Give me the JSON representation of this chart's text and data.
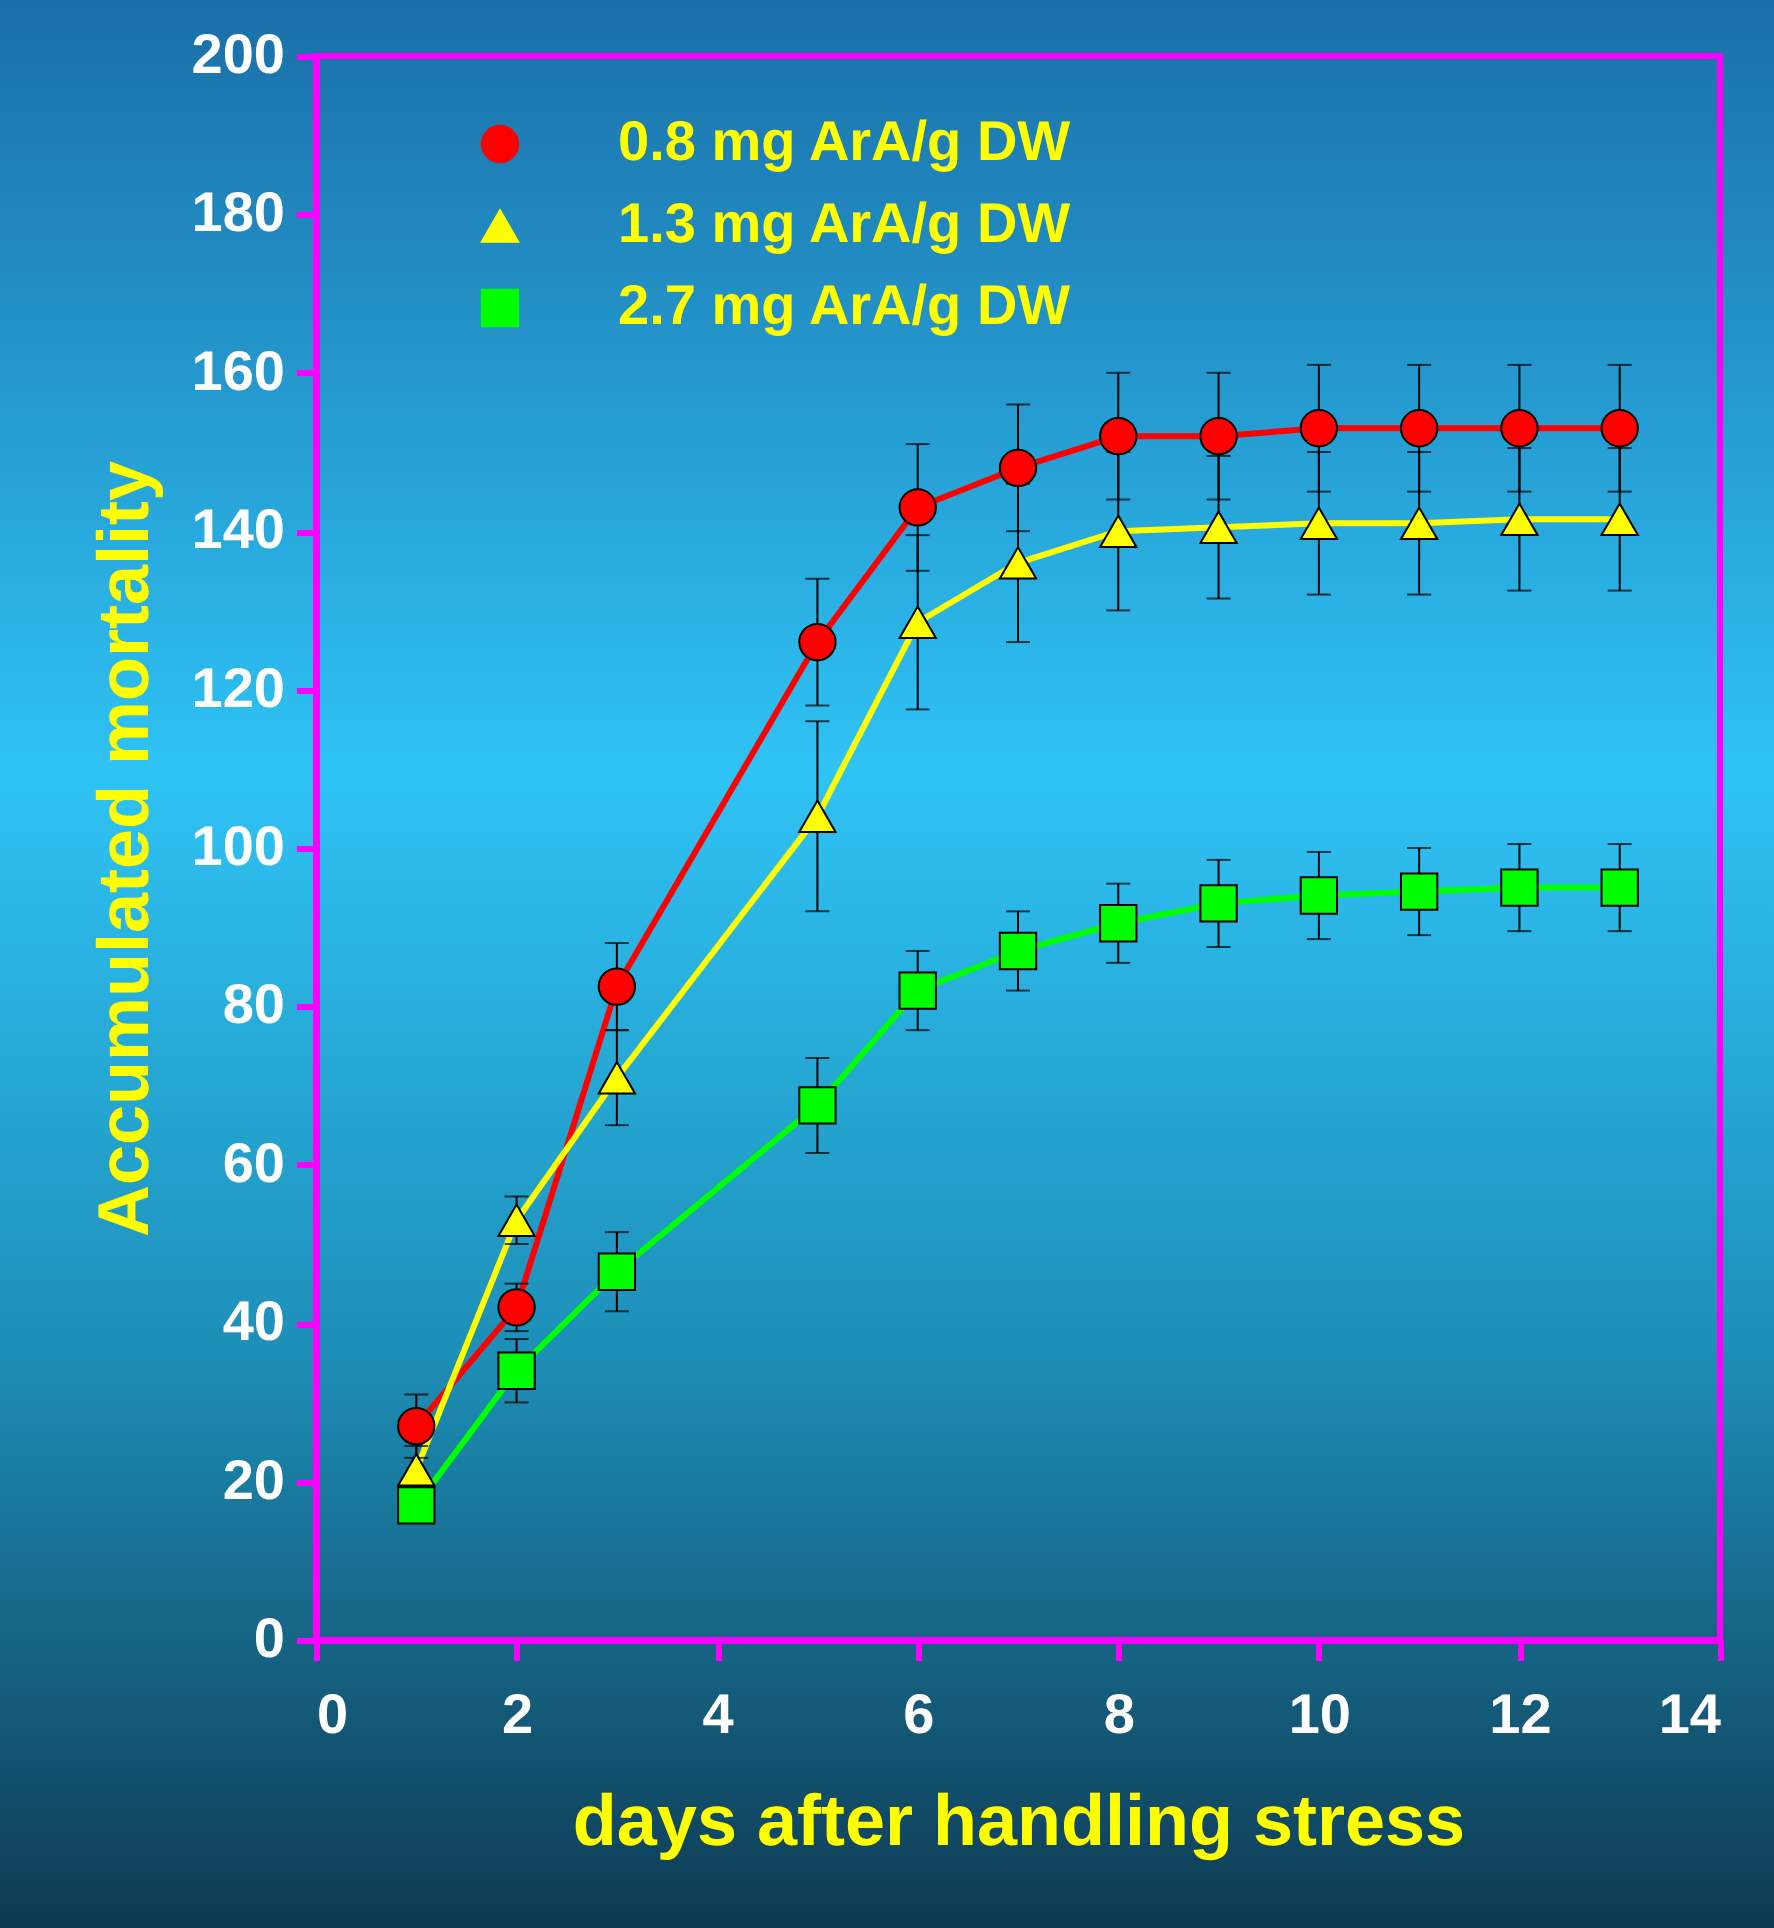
{
  "chart_data": {
    "type": "line",
    "xlabel": "days after handling stress",
    "ylabel": "Accumulated mortality",
    "x": [
      1,
      2,
      3,
      5,
      6,
      7,
      8,
      9,
      10,
      11,
      12,
      13
    ],
    "series": [
      {
        "name": "0.8 mg ArA/g DW",
        "color": "#ff0000",
        "marker": "circle",
        "values": [
          27,
          42,
          82.5,
          126,
          143,
          148,
          152,
          152,
          153,
          153,
          153,
          153
        ],
        "errors": [
          4,
          3,
          5.5,
          8,
          8,
          8,
          8,
          8,
          8,
          8,
          8,
          8
        ]
      },
      {
        "name": "1.3 mg ArA/g DW",
        "color": "#ffff00",
        "marker": "triangle",
        "values": [
          21.5,
          53,
          71,
          104,
          128.5,
          136,
          140,
          140.5,
          141,
          141,
          141.5,
          141.5
        ],
        "errors": [
          3,
          3,
          6,
          12,
          11,
          10,
          10,
          9,
          9,
          9,
          9,
          9
        ]
      },
      {
        "name": "2.7 mg ArA/g DW",
        "color": "#00ff00",
        "marker": "square",
        "values": [
          17,
          34,
          46.5,
          67.5,
          82,
          87,
          90.5,
          93,
          94,
          94.5,
          95,
          95
        ],
        "errors": [
          2,
          4,
          5,
          6,
          5,
          5,
          5,
          5.5,
          5.5,
          5.5,
          5.5,
          5.5
        ]
      }
    ],
    "xlim": [
      0,
      14
    ],
    "xticks": [
      0,
      2,
      4,
      6,
      8,
      10,
      12,
      14
    ],
    "ylim": [
      0,
      200
    ],
    "yticks": [
      0,
      20,
      40,
      60,
      80,
      100,
      120,
      140,
      160,
      180,
      200
    ],
    "grid": false,
    "legend": "top left",
    "line_style": "solid"
  }
}
